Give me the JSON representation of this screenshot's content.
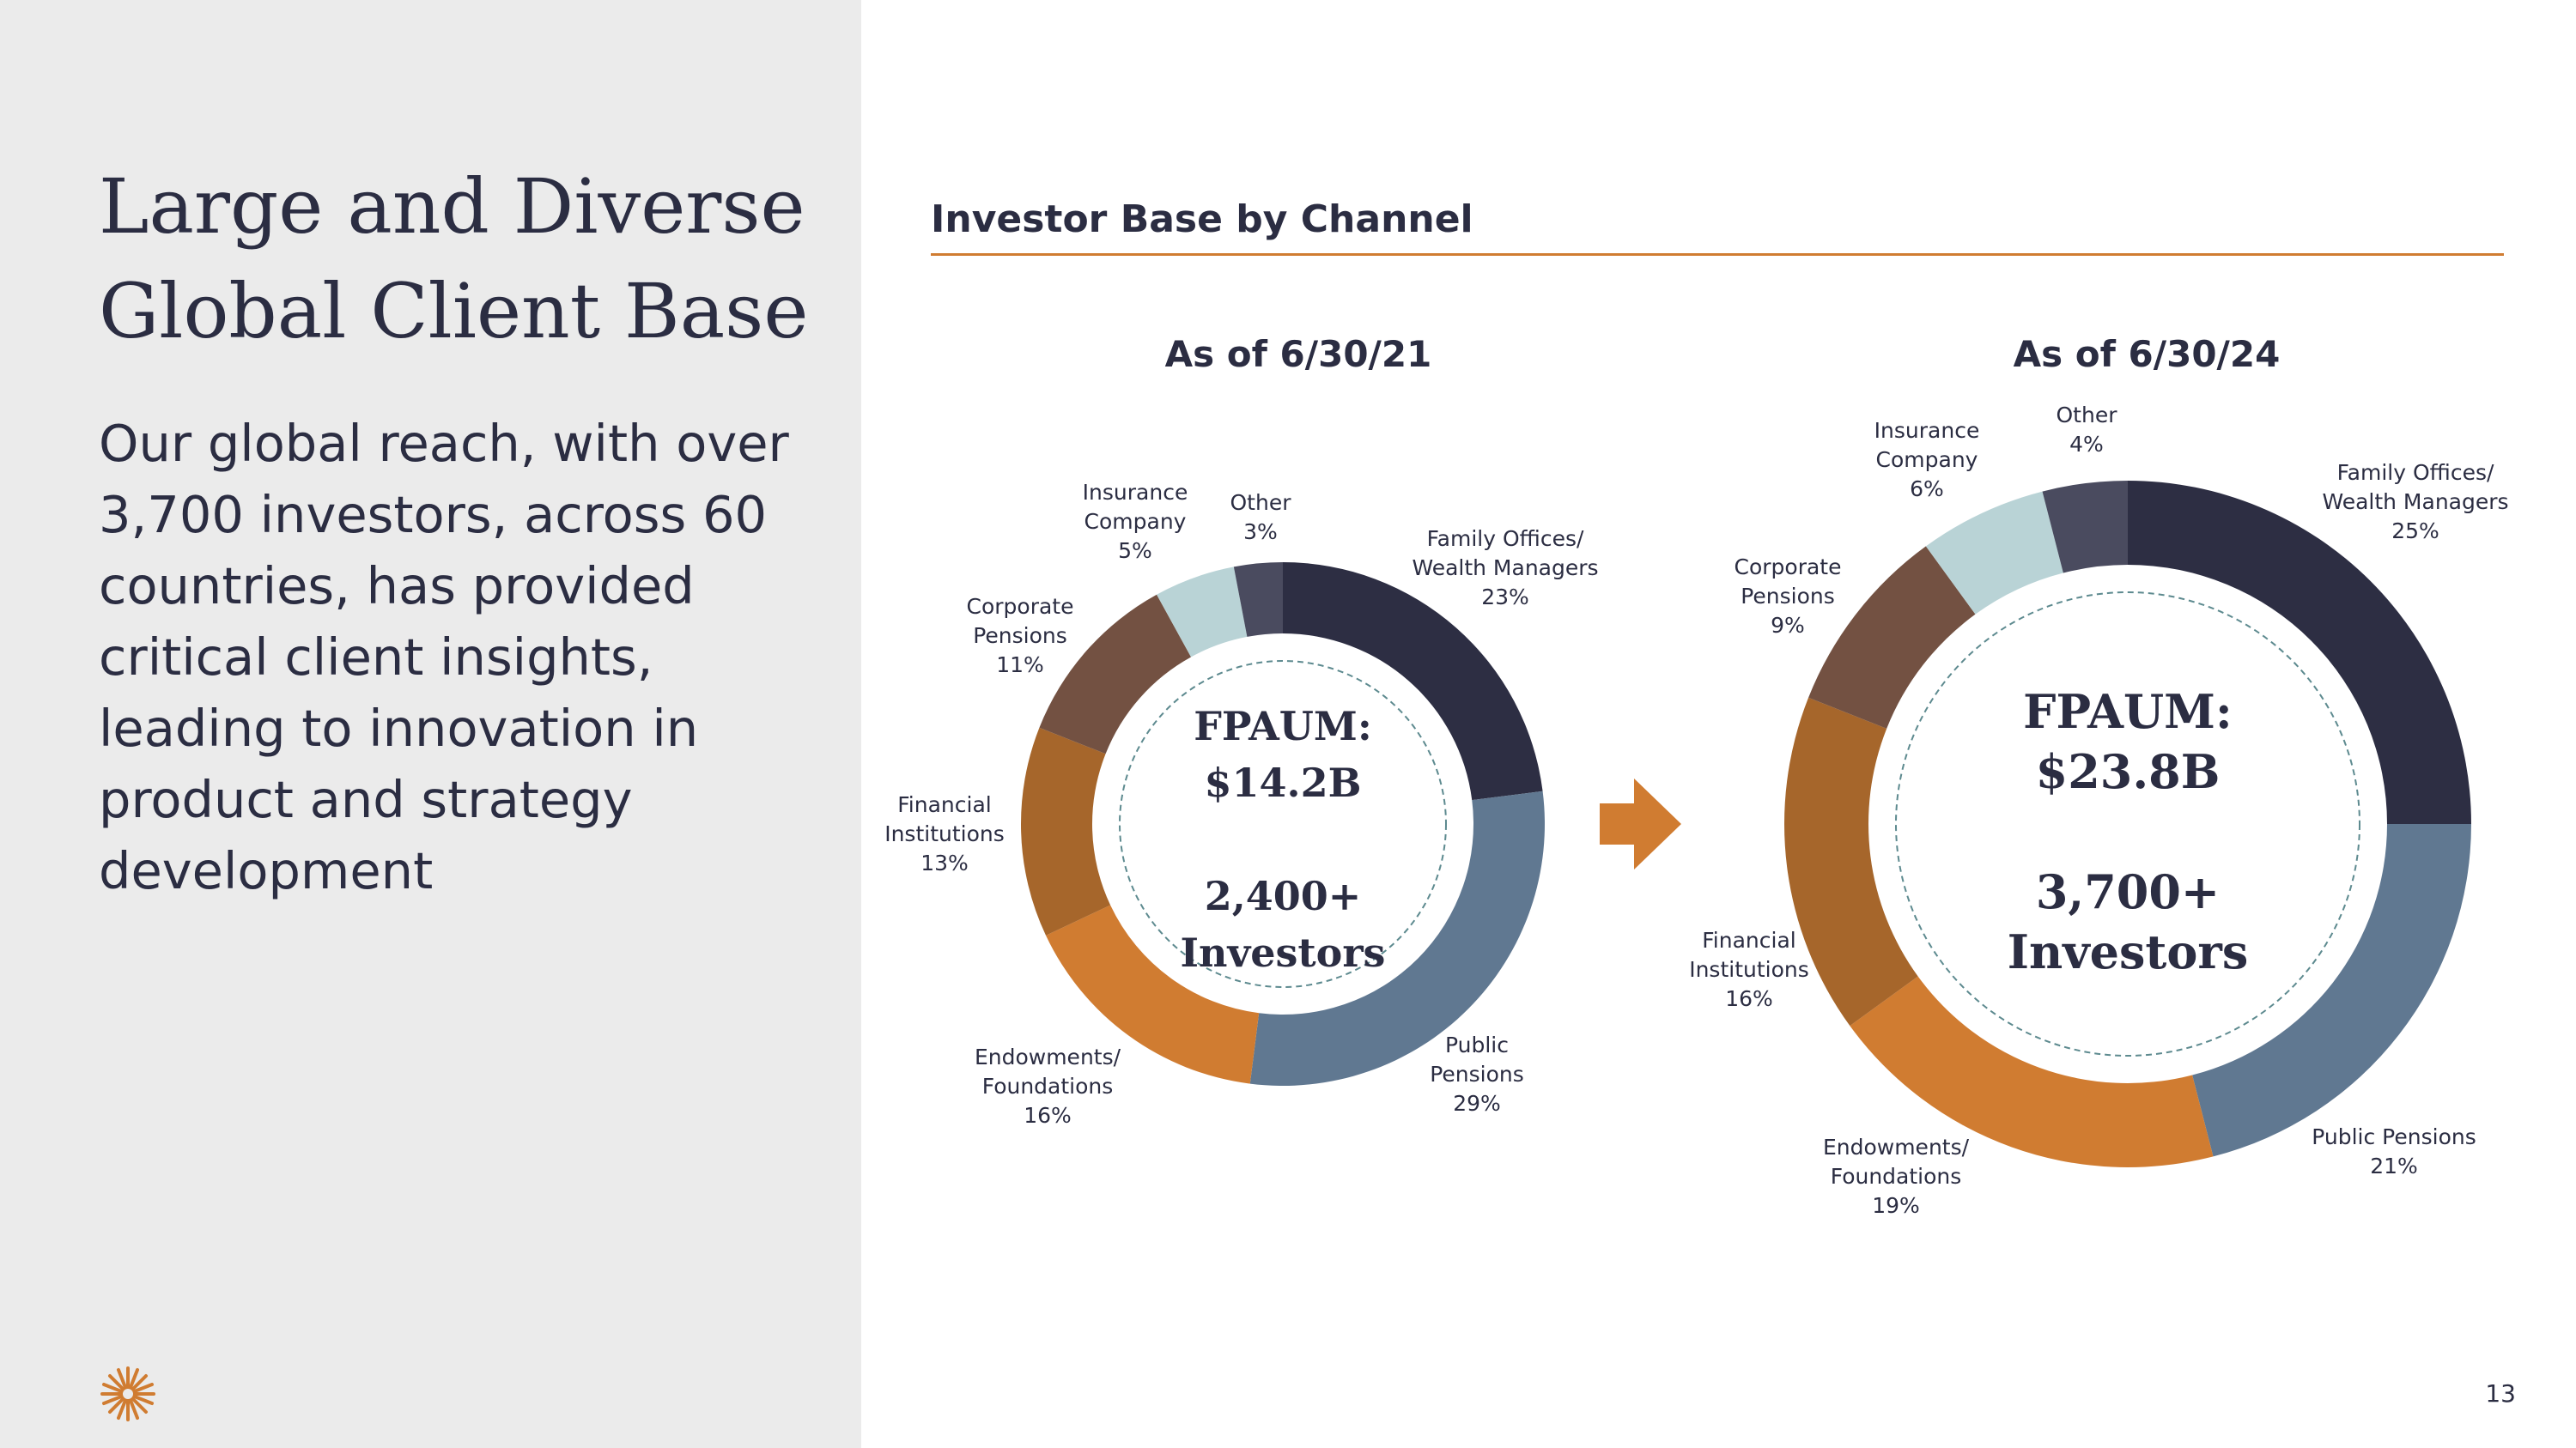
{
  "slide": {
    "title_line1": "Large and Diverse",
    "title_line2": "Global Client Base",
    "body_lines": [
      "Our global reach, with over",
      "3,700 investors, across 60",
      "countries, has provided",
      "critical client insights,",
      "leading to innovation in",
      "product and strategy",
      "development"
    ],
    "section_title": "Investor Base by Channel",
    "page_number": "13"
  },
  "colors": {
    "accent": "#d07c31",
    "family_offices": "#2d2e43",
    "public_pensions": "#607891",
    "endowments": "#d07c31",
    "financial_institutions": "#a6662b",
    "corporate_pensions": "#735142",
    "insurance": "#b9d3d6",
    "other": "#4a4b5f"
  },
  "chart_data": [
    {
      "type": "pie",
      "title": "As of 6/30/21",
      "center_lines": [
        "FPAUM:",
        "$14.2B",
        "",
        "2,400+",
        "Investors"
      ],
      "slices": [
        {
          "label_lines": [
            "Family Offices/",
            "Wealth Managers",
            "23%"
          ],
          "value": 23,
          "color_key": "family_offices"
        },
        {
          "label_lines": [
            "Public",
            "Pensions",
            "29%"
          ],
          "value": 29,
          "color_key": "public_pensions"
        },
        {
          "label_lines": [
            "Endowments/",
            "Foundations",
            "16%"
          ],
          "value": 16,
          "color_key": "endowments"
        },
        {
          "label_lines": [
            "Financial",
            "Institutions",
            "13%"
          ],
          "value": 13,
          "color_key": "financial_institutions"
        },
        {
          "label_lines": [
            "Corporate",
            "Pensions",
            "11%"
          ],
          "value": 11,
          "color_key": "corporate_pensions"
        },
        {
          "label_lines": [
            "Insurance",
            "Company",
            "5%"
          ],
          "value": 5,
          "color_key": "insurance"
        },
        {
          "label_lines": [
            "Other",
            "3%"
          ],
          "value": 3,
          "color_key": "other"
        }
      ]
    },
    {
      "type": "pie",
      "title": "As of 6/30/24",
      "center_lines": [
        "FPAUM:",
        "$23.8B",
        "",
        "3,700+",
        "Investors"
      ],
      "slices": [
        {
          "label_lines": [
            "Family Offices/",
            "Wealth Managers",
            "25%"
          ],
          "value": 25,
          "color_key": "family_offices"
        },
        {
          "label_lines": [
            "Public Pensions",
            "21%"
          ],
          "value": 21,
          "color_key": "public_pensions"
        },
        {
          "label_lines": [
            "Endowments/",
            "Foundations",
            "19%"
          ],
          "value": 19,
          "color_key": "endowments"
        },
        {
          "label_lines": [
            "Financial",
            "Institutions",
            "16%"
          ],
          "value": 16,
          "color_key": "financial_institutions"
        },
        {
          "label_lines": [
            "Corporate",
            "Pensions",
            "9%"
          ],
          "value": 9,
          "color_key": "corporate_pensions"
        },
        {
          "label_lines": [
            "Insurance",
            "Company",
            "6%"
          ],
          "value": 6,
          "color_key": "insurance"
        },
        {
          "label_lines": [
            "Other",
            "4%"
          ],
          "value": 4,
          "color_key": "other"
        }
      ]
    }
  ]
}
